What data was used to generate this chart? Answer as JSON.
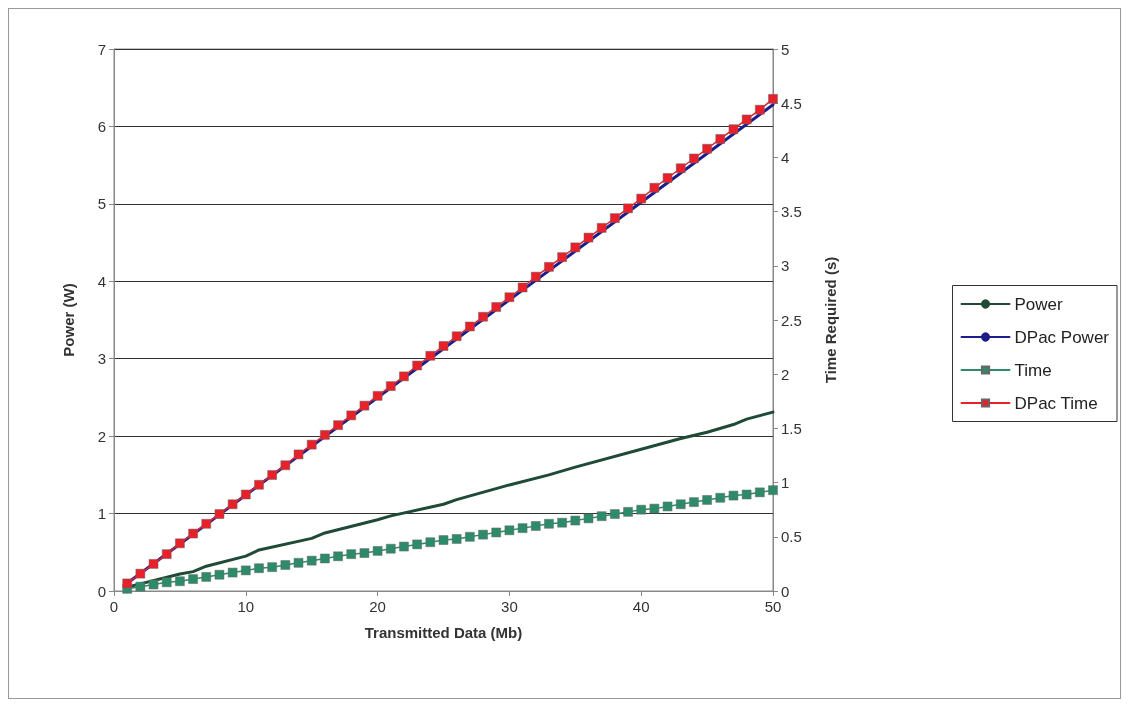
{
  "chart_data": {
    "type": "line",
    "xlabel": "Transmitted Data (Mb)",
    "ylabel": "Power (W)",
    "y2label": "Time Required (s)",
    "xlim": [
      0,
      50
    ],
    "xticks": [
      0,
      10,
      20,
      30,
      40,
      50
    ],
    "ylim": [
      0,
      7
    ],
    "yticks": [
      0,
      1,
      2,
      3,
      4,
      5,
      6,
      7
    ],
    "y2lim": [
      0,
      5
    ],
    "y2ticks": [
      0,
      0.5,
      1,
      1.5,
      2,
      2.5,
      3,
      3.5,
      4,
      4.5,
      5
    ],
    "grid": "y",
    "legend": "right",
    "line_style": "solid",
    "series": [
      {
        "name": "Power",
        "color": "#1f4a36",
        "marker": "none",
        "x": [
          1,
          5,
          6,
          7,
          10,
          11,
          15,
          16,
          20,
          21,
          25,
          26,
          30,
          33,
          35,
          40,
          43,
          45,
          47,
          48,
          50
        ],
        "values": [
          0.05,
          0.22,
          0.25,
          0.32,
          0.45,
          0.53,
          0.68,
          0.75,
          0.92,
          0.97,
          1.12,
          1.18,
          1.37,
          1.5,
          1.6,
          1.83,
          1.97,
          2.05,
          2.15,
          2.22,
          2.31
        ]
      },
      {
        "name": "DPac Power",
        "color": "#1c1c8a",
        "marker": "none",
        "x": [
          1,
          10,
          20,
          30,
          40,
          50
        ],
        "values": [
          0.1,
          1.24,
          2.5,
          3.76,
          5.02,
          6.28
        ]
      },
      {
        "name": "Time",
        "color": "#2e8b6a",
        "marker": "square",
        "axis": "y2",
        "x": [
          1,
          2,
          3,
          4,
          5,
          6,
          7,
          8,
          9,
          10,
          11,
          12,
          13,
          14,
          15,
          16,
          17,
          18,
          19,
          20,
          21,
          22,
          23,
          24,
          25,
          26,
          27,
          28,
          29,
          30,
          31,
          32,
          33,
          34,
          35,
          36,
          37,
          38,
          39,
          40,
          41,
          42,
          43,
          44,
          45,
          46,
          47,
          48,
          49,
          50
        ],
        "values": [
          0.02,
          0.04,
          0.06,
          0.08,
          0.09,
          0.11,
          0.13,
          0.15,
          0.17,
          0.19,
          0.21,
          0.22,
          0.24,
          0.26,
          0.28,
          0.3,
          0.32,
          0.34,
          0.35,
          0.37,
          0.39,
          0.41,
          0.43,
          0.45,
          0.47,
          0.48,
          0.5,
          0.52,
          0.54,
          0.56,
          0.58,
          0.6,
          0.62,
          0.63,
          0.65,
          0.67,
          0.69,
          0.71,
          0.73,
          0.75,
          0.76,
          0.78,
          0.8,
          0.82,
          0.84,
          0.86,
          0.88,
          0.89,
          0.91,
          0.93
        ]
      },
      {
        "name": "DPac Time",
        "color": "#e8202a",
        "marker": "square",
        "axis": "y2",
        "x": [
          1,
          2,
          3,
          4,
          5,
          6,
          7,
          8,
          9,
          10,
          11,
          12,
          13,
          14,
          15,
          16,
          17,
          18,
          19,
          20,
          21,
          22,
          23,
          24,
          25,
          26,
          27,
          28,
          29,
          30,
          31,
          32,
          33,
          34,
          35,
          36,
          37,
          38,
          39,
          40,
          41,
          42,
          43,
          44,
          45,
          46,
          47,
          48,
          49,
          50
        ],
        "values": [
          0.07,
          0.16,
          0.25,
          0.34,
          0.44,
          0.53,
          0.62,
          0.71,
          0.8,
          0.89,
          0.98,
          1.07,
          1.16,
          1.26,
          1.35,
          1.44,
          1.53,
          1.62,
          1.71,
          1.8,
          1.89,
          1.98,
          2.08,
          2.17,
          2.26,
          2.35,
          2.44,
          2.53,
          2.62,
          2.71,
          2.8,
          2.9,
          2.99,
          3.08,
          3.17,
          3.26,
          3.35,
          3.44,
          3.53,
          3.62,
          3.72,
          3.81,
          3.9,
          3.99,
          4.08,
          4.17,
          4.26,
          4.35,
          4.44,
          4.54
        ]
      }
    ]
  }
}
